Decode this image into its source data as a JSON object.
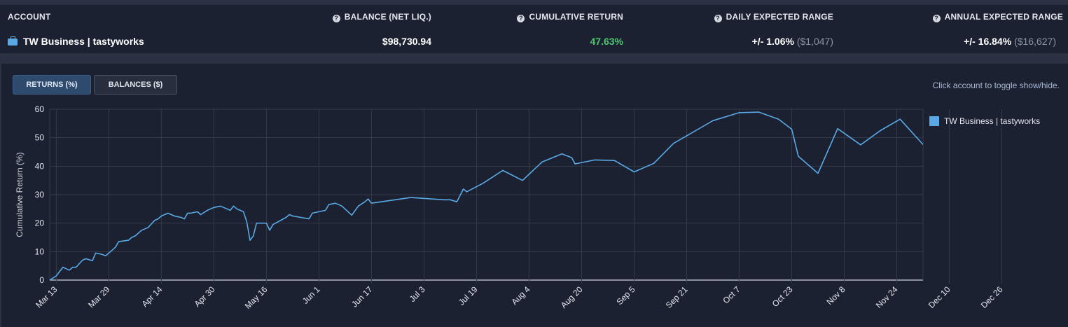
{
  "summary": {
    "headers": {
      "account": "ACCOUNT",
      "balance": "BALANCE (NET LIQ.)",
      "cumulative": "CUMULATIVE RETURN",
      "daily": "DAILY EXPECTED RANGE",
      "annual": "ANNUAL EXPECTED RANGE"
    },
    "account_name": "TW Business | tastyworks",
    "balance": "$98,730.94",
    "cumulative_return": "47.63%",
    "daily_range": "+/- 1.06%",
    "daily_range_amount": "($1,047)",
    "annual_range": "+/- 16.84%",
    "annual_range_amount": "($16,627)",
    "colors": {
      "positive": "#4cc771",
      "accent": "#5aa9e6"
    }
  },
  "controls": {
    "returns_label": "RETURNS (%)",
    "balances_label": "BALANCES ($)",
    "active": "returns",
    "hint": "Click account to toggle show/hide."
  },
  "chart_data": {
    "type": "line",
    "ylabel": "Cumulative Return (%)",
    "ylim": [
      0,
      60
    ],
    "yticks": [
      0,
      10,
      20,
      30,
      40,
      50,
      60
    ],
    "xticks": [
      "Mar 13",
      "Mar 29",
      "Apr 14",
      "Apr 30",
      "May 16",
      "Jun 1",
      "Jun 17",
      "Jul 3",
      "Jul 19",
      "Aug 4",
      "Aug 20",
      "Sep 5",
      "Sep 21",
      "Oct 7",
      "Oct 23",
      "Nov 8",
      "Nov 24",
      "Dec 10",
      "Dec 26"
    ],
    "grid": true,
    "legend_position": "right",
    "series": [
      {
        "name": "TW Business | tastyworks",
        "color": "#5aa9e6",
        "points": [
          [
            0,
            0
          ],
          [
            2,
            1.5
          ],
          [
            4,
            4.5
          ],
          [
            6,
            3.5
          ],
          [
            7,
            4.5
          ],
          [
            8,
            4.5
          ],
          [
            10,
            7
          ],
          [
            11,
            7.5
          ],
          [
            13,
            6.8
          ],
          [
            14,
            9.5
          ],
          [
            16,
            9
          ],
          [
            17,
            8.5
          ],
          [
            19,
            10.5
          ],
          [
            20,
            11.5
          ],
          [
            21,
            13.5
          ],
          [
            24,
            14
          ],
          [
            25,
            15
          ],
          [
            26,
            15.5
          ],
          [
            28,
            17.5
          ],
          [
            30,
            18.5
          ],
          [
            32,
            21
          ],
          [
            33,
            21.5
          ],
          [
            34,
            22.5
          ],
          [
            36,
            23.5
          ],
          [
            38,
            22.5
          ],
          [
            40,
            22
          ],
          [
            41,
            21.5
          ],
          [
            42,
            23.5
          ],
          [
            43,
            23.5
          ],
          [
            45,
            24
          ],
          [
            46,
            23
          ],
          [
            48,
            24.5
          ],
          [
            50,
            25.5
          ],
          [
            52,
            26
          ],
          [
            54,
            25
          ],
          [
            55,
            24.5
          ],
          [
            56,
            26
          ],
          [
            57,
            25
          ],
          [
            59,
            24
          ],
          [
            60,
            20.5
          ],
          [
            61,
            14
          ],
          [
            62,
            15.5
          ],
          [
            63,
            20
          ],
          [
            66,
            20
          ],
          [
            67,
            17.5
          ],
          [
            68,
            19.5
          ],
          [
            72,
            22
          ],
          [
            73,
            23
          ],
          [
            74,
            22.5
          ],
          [
            79,
            21.5
          ],
          [
            80,
            23.5
          ],
          [
            84,
            24.5
          ],
          [
            85,
            26.5
          ],
          [
            87,
            27
          ],
          [
            89,
            26
          ],
          [
            92,
            22.8
          ],
          [
            94,
            26
          ],
          [
            96,
            27.5
          ],
          [
            97,
            28.5
          ],
          [
            98,
            27
          ],
          [
            110,
            29
          ],
          [
            120,
            28.2
          ],
          [
            122,
            28.2
          ],
          [
            124,
            27.5
          ],
          [
            126,
            32
          ],
          [
            127,
            31
          ],
          [
            132,
            34
          ],
          [
            138,
            38.5
          ],
          [
            144,
            35
          ],
          [
            150,
            41.5
          ],
          [
            156,
            44.3
          ],
          [
            159,
            43
          ],
          [
            160,
            40.8
          ],
          [
            166,
            42.2
          ],
          [
            172,
            42
          ],
          [
            178,
            38
          ],
          [
            184,
            41
          ],
          [
            190,
            48
          ],
          [
            202,
            56
          ],
          [
            210,
            58.8
          ],
          [
            216,
            59
          ],
          [
            222,
            56.5
          ],
          [
            226,
            53
          ],
          [
            228,
            43.5
          ],
          [
            234,
            37.5
          ],
          [
            240,
            53.2
          ],
          [
            247,
            47.5
          ],
          [
            253,
            52.5
          ],
          [
            259,
            56.5
          ],
          [
            266,
            47.6
          ]
        ]
      }
    ]
  }
}
